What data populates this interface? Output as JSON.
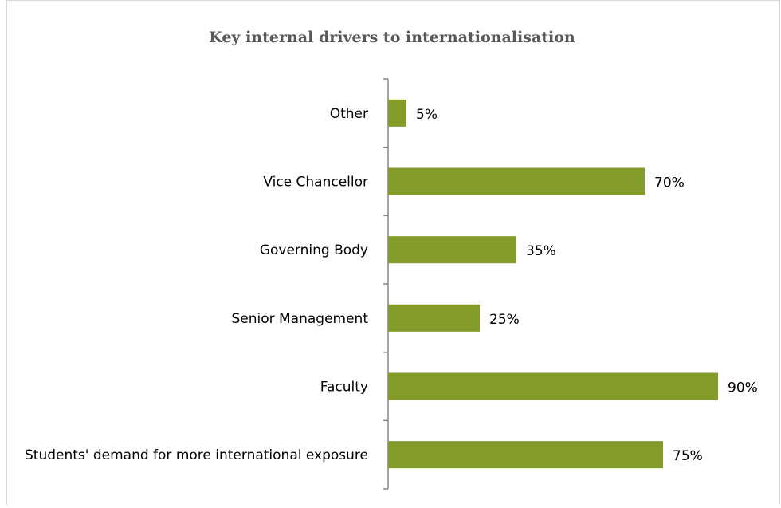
{
  "chart_data": {
    "type": "bar",
    "orientation": "horizontal",
    "title": "Key internal drivers to internationalisation",
    "categories": [
      "Other",
      "Vice Chancellor",
      "Governing Body",
      "Senior Management",
      "Faculty",
      "Students' demand for more international exposure"
    ],
    "values": [
      5,
      70,
      35,
      25,
      90,
      75
    ],
    "value_labels": [
      "5%",
      "70%",
      "35%",
      "25%",
      "90%",
      "75%"
    ],
    "color": "#839b28",
    "xlim": [
      0,
      100
    ]
  }
}
